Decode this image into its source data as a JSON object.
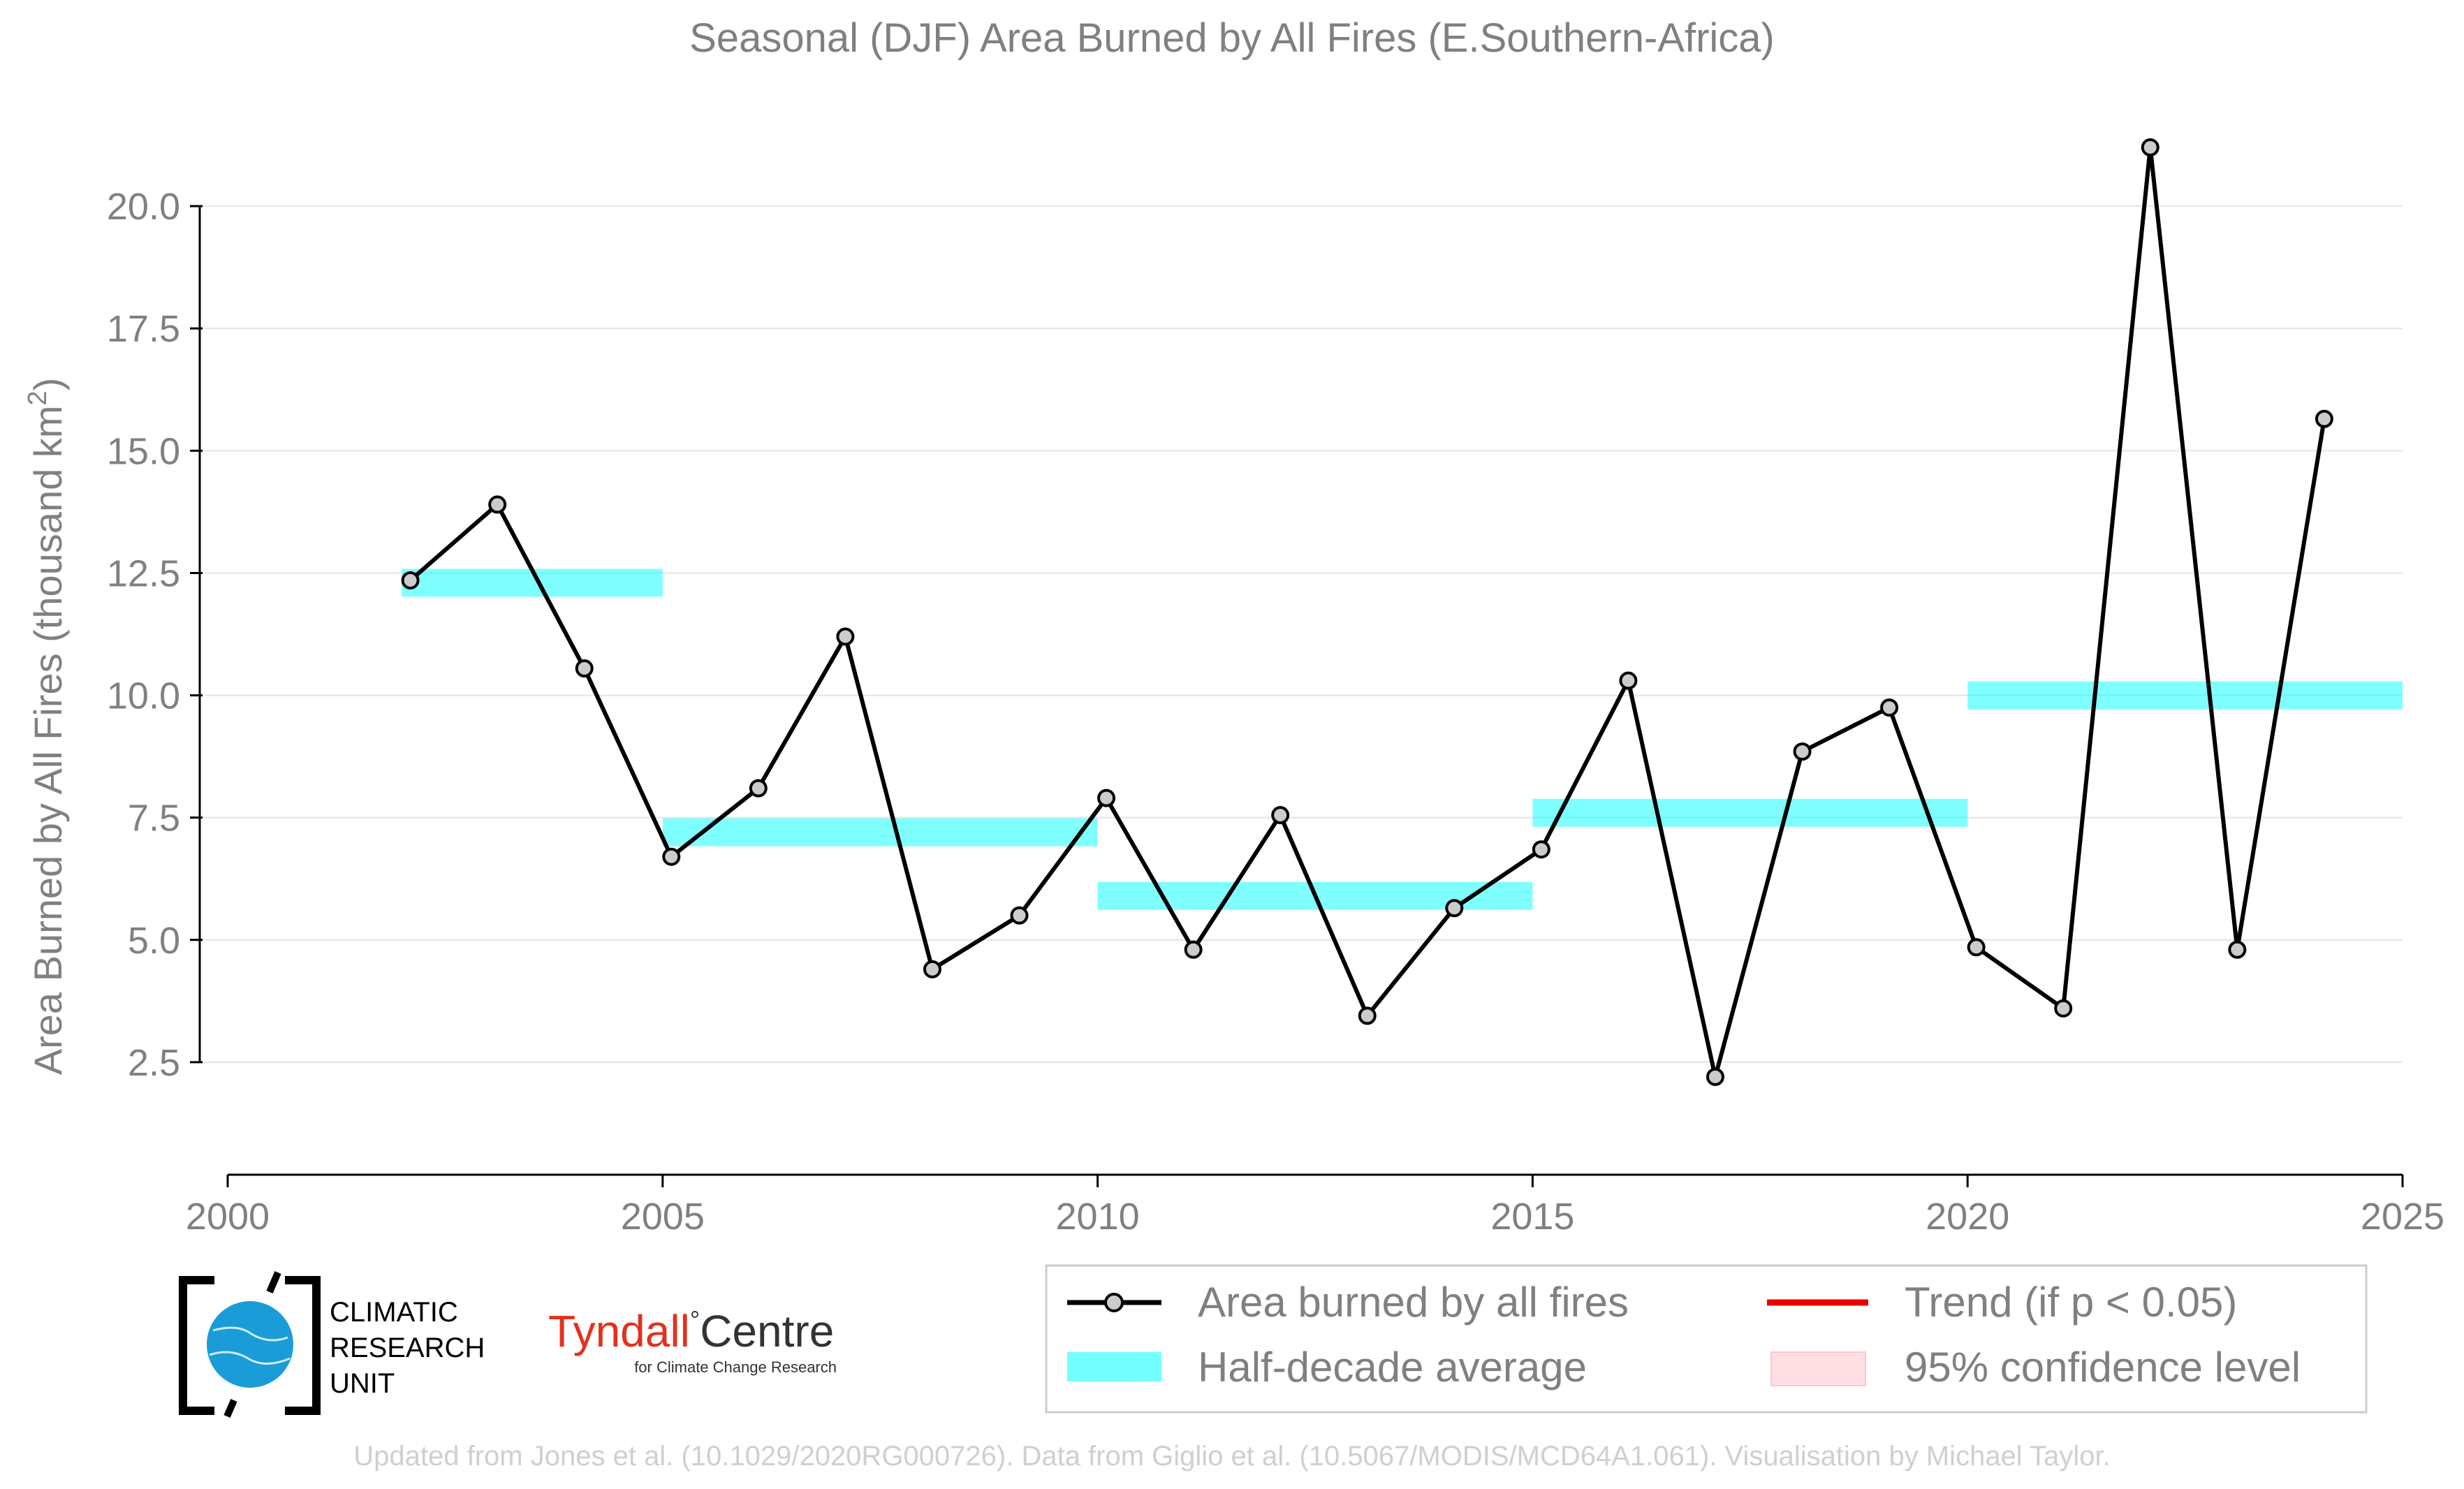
{
  "chart_data": {
    "type": "line",
    "title": "Seasonal (DJF) Area Burned by All Fires (E.Southern-Africa)",
    "ylabel": "Area Burned by All Fires (thousand km",
    "ylabel_sup": "2",
    "ylabel_close": ")",
    "xlabel": "",
    "xlim": [
      2000,
      2025
    ],
    "ylim": [
      0.8,
      22.0
    ],
    "xticks": [
      2000,
      2005,
      2010,
      2015,
      2020,
      2025
    ],
    "xtick_labels": [
      "2000",
      "2005",
      "2010",
      "2015",
      "2020",
      "2025"
    ],
    "yticks": [
      2.5,
      5.0,
      7.5,
      10.0,
      12.5,
      15.0,
      17.5,
      20.0
    ],
    "ytick_labels": [
      "2.5",
      "5.0",
      "7.5",
      "10.0",
      "12.5",
      "15.0",
      "17.5",
      "20.0"
    ],
    "grid": "horizontal",
    "legend_position": "bottom-right",
    "series": [
      {
        "name": "Area burned by all fires",
        "color": "#000000",
        "marker_fill": "#cccccc",
        "x": [
          2002.1,
          2003.1,
          2004.1,
          2005.1,
          2006.1,
          2007.1,
          2008.1,
          2009.1,
          2010.1,
          2011.1,
          2012.1,
          2013.1,
          2014.1,
          2015.1,
          2016.1,
          2017.1,
          2018.1,
          2019.1,
          2020.1,
          2021.1,
          2022.1,
          2023.1,
          2024.1
        ],
        "values": [
          12.35,
          13.9,
          10.55,
          6.7,
          8.1,
          11.2,
          4.4,
          5.5,
          7.9,
          4.8,
          7.55,
          3.45,
          5.65,
          6.85,
          10.3,
          2.2,
          8.85,
          9.75,
          4.85,
          3.6,
          21.2,
          4.8,
          15.65
        ]
      }
    ],
    "half_decade_average": {
      "name": "Half-decade average",
      "color": "#00ffff",
      "segments": [
        {
          "x_start": 2002.0,
          "x_end": 2005.0,
          "value": 12.3
        },
        {
          "x_start": 2005.0,
          "x_end": 2010.0,
          "value": 7.2
        },
        {
          "x_start": 2010.0,
          "x_end": 2015.0,
          "value": 5.9
        },
        {
          "x_start": 2015.0,
          "x_end": 2020.0,
          "value": 7.6
        },
        {
          "x_start": 2020.0,
          "x_end": 2025.0,
          "value": 10.0
        }
      ]
    },
    "legend": [
      {
        "label": "Area burned by all fires",
        "kind": "line-marker",
        "color": "#000000"
      },
      {
        "label": "Trend (if p < 0.05)",
        "kind": "line",
        "color": "#ee0000"
      },
      {
        "label": "Half-decade average",
        "kind": "band",
        "color": "#00ffff"
      },
      {
        "label": "95% confidence level",
        "kind": "patch",
        "color": "#ffdfe3"
      }
    ]
  },
  "logos": {
    "cru_line1": "CLIMATIC",
    "cru_line2": "RESEARCH",
    "cru_line3": "UNIT",
    "tyndall_main": "Tyndall",
    "tyndall_degree": "°",
    "tyndall_centre": "Centre",
    "tyndall_sub": "for Climate Change Research"
  },
  "footer": "Updated from Jones et al. (10.1029/2020RG000726). Data from Giglio et al. (10.5067/MODIS/MCD64A1.061). Visualisation by Michael Taylor."
}
